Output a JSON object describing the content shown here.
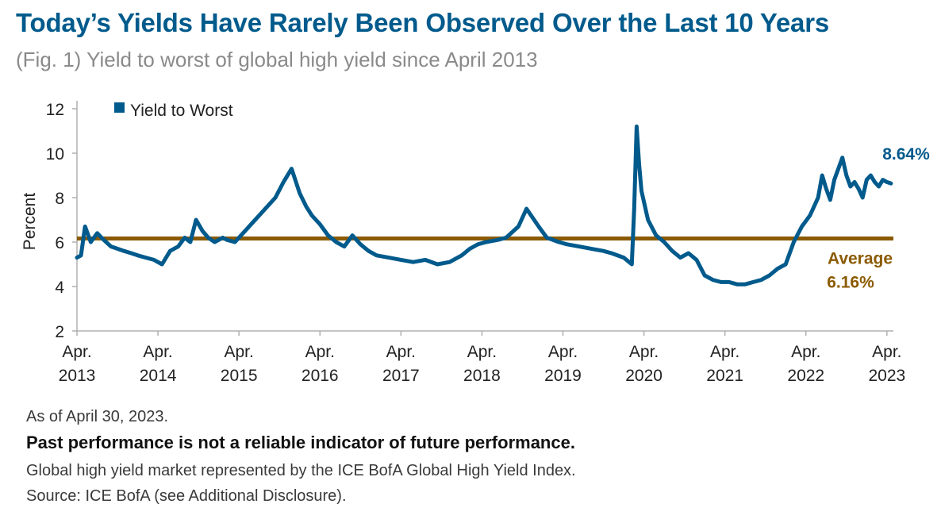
{
  "title": "Today’s Yields Have Rarely Been Observed Over the Last 10 Years",
  "subtitle": "(Fig. 1) Yield to worst of global high yield since April 2013",
  "notes": {
    "as_of": "As of April 30, 2023.",
    "disclaimer": "Past performance is not a reliable indicator of future performance.",
    "index": "Global high yield market represented by the ICE BofA Global High Yield Index.",
    "source": "Source: ICE BofA (see Additional Disclosure)."
  },
  "colors": {
    "series": "#005A8C",
    "average": "#8B5A00",
    "title": "#005A8C",
    "axis": "#b0b0b0"
  },
  "chart_data": {
    "type": "line",
    "ylabel": "Percent",
    "ylim": [
      2,
      12
    ],
    "yticks": [
      2,
      4,
      6,
      8,
      10,
      12
    ],
    "xlim": [
      2013.25,
      2023.33
    ],
    "xticks": [
      {
        "line1": "Apr.",
        "line2": "2013",
        "x": 2013.25
      },
      {
        "line1": "Apr.",
        "line2": "2014",
        "x": 2014.25
      },
      {
        "line1": "Apr.",
        "line2": "2015",
        "x": 2015.25
      },
      {
        "line1": "Apr.",
        "line2": "2016",
        "x": 2016.25
      },
      {
        "line1": "Apr.",
        "line2": "2017",
        "x": 2017.25
      },
      {
        "line1": "Apr.",
        "line2": "2018",
        "x": 2018.25
      },
      {
        "line1": "Apr.",
        "line2": "2019",
        "x": 2019.25
      },
      {
        "line1": "Apr.",
        "line2": "2020",
        "x": 2020.25
      },
      {
        "line1": "Apr.",
        "line2": "2021",
        "x": 2021.25
      },
      {
        "line1": "Apr.",
        "line2": "2022",
        "x": 2022.25
      },
      {
        "line1": "Apr.",
        "line2": "2023",
        "x": 2023.25
      }
    ],
    "legend": {
      "entries": [
        "Yield to Worst"
      ],
      "placement": "top-left"
    },
    "series": [
      {
        "name": "Yield to Worst",
        "x": [
          2013.25,
          2013.3,
          2013.35,
          2013.42,
          2013.5,
          2013.58,
          2013.67,
          2013.75,
          2013.83,
          2013.92,
          2014.0,
          2014.1,
          2014.2,
          2014.3,
          2014.4,
          2014.5,
          2014.58,
          2014.65,
          2014.72,
          2014.8,
          2014.87,
          2014.95,
          2015.05,
          2015.1,
          2015.2,
          2015.3,
          2015.4,
          2015.5,
          2015.6,
          2015.7,
          2015.8,
          2015.9,
          2016.0,
          2016.08,
          2016.15,
          2016.25,
          2016.35,
          2016.45,
          2016.55,
          2016.65,
          2016.75,
          2016.85,
          2016.95,
          2017.1,
          2017.25,
          2017.4,
          2017.55,
          2017.7,
          2017.85,
          2018.0,
          2018.1,
          2018.2,
          2018.3,
          2018.45,
          2018.55,
          2018.7,
          2018.8,
          2018.95,
          2019.05,
          2019.2,
          2019.3,
          2019.45,
          2019.6,
          2019.75,
          2019.85,
          2020.0,
          2020.1,
          2020.13,
          2020.16,
          2020.19,
          2020.22,
          2020.3,
          2020.4,
          2020.5,
          2020.6,
          2020.7,
          2020.8,
          2020.9,
          2021.0,
          2021.1,
          2021.2,
          2021.3,
          2021.4,
          2021.5,
          2021.6,
          2021.7,
          2021.8,
          2021.9,
          2022.0,
          2022.1,
          2022.2,
          2022.3,
          2022.4,
          2022.45,
          2022.5,
          2022.55,
          2022.6,
          2022.65,
          2022.7,
          2022.75,
          2022.8,
          2022.85,
          2022.9,
          2022.95,
          2023.0,
          2023.05,
          2023.1,
          2023.15,
          2023.2,
          2023.25,
          2023.3
        ],
        "y": [
          5.3,
          5.4,
          6.7,
          6.0,
          6.4,
          6.1,
          5.8,
          5.7,
          5.6,
          5.5,
          5.4,
          5.3,
          5.2,
          5.0,
          5.6,
          5.8,
          6.2,
          6.0,
          7.0,
          6.5,
          6.2,
          6.0,
          6.2,
          6.1,
          6.0,
          6.4,
          6.8,
          7.2,
          7.6,
          8.0,
          8.7,
          9.3,
          8.2,
          7.6,
          7.2,
          6.8,
          6.3,
          6.0,
          5.8,
          6.3,
          5.9,
          5.6,
          5.4,
          5.3,
          5.2,
          5.1,
          5.2,
          5.0,
          5.1,
          5.4,
          5.7,
          5.9,
          6.0,
          6.1,
          6.2,
          6.7,
          7.5,
          6.7,
          6.2,
          6.0,
          5.9,
          5.8,
          5.7,
          5.6,
          5.5,
          5.3,
          5.0,
          7.5,
          11.2,
          9.5,
          8.3,
          7.0,
          6.3,
          6.0,
          5.6,
          5.3,
          5.5,
          5.2,
          4.5,
          4.3,
          4.2,
          4.2,
          4.1,
          4.1,
          4.2,
          4.3,
          4.5,
          4.8,
          5.0,
          6.0,
          6.7,
          7.2,
          8.0,
          9.0,
          8.4,
          7.9,
          8.8,
          9.3,
          9.8,
          9.0,
          8.5,
          8.7,
          8.4,
          8.0,
          8.8,
          9.0,
          8.7,
          8.5,
          8.8,
          8.7,
          8.64
        ]
      }
    ],
    "average": {
      "value": 6.16,
      "label_line1": "Average",
      "label_line2": "6.16%"
    },
    "end_label": "8.64%"
  }
}
